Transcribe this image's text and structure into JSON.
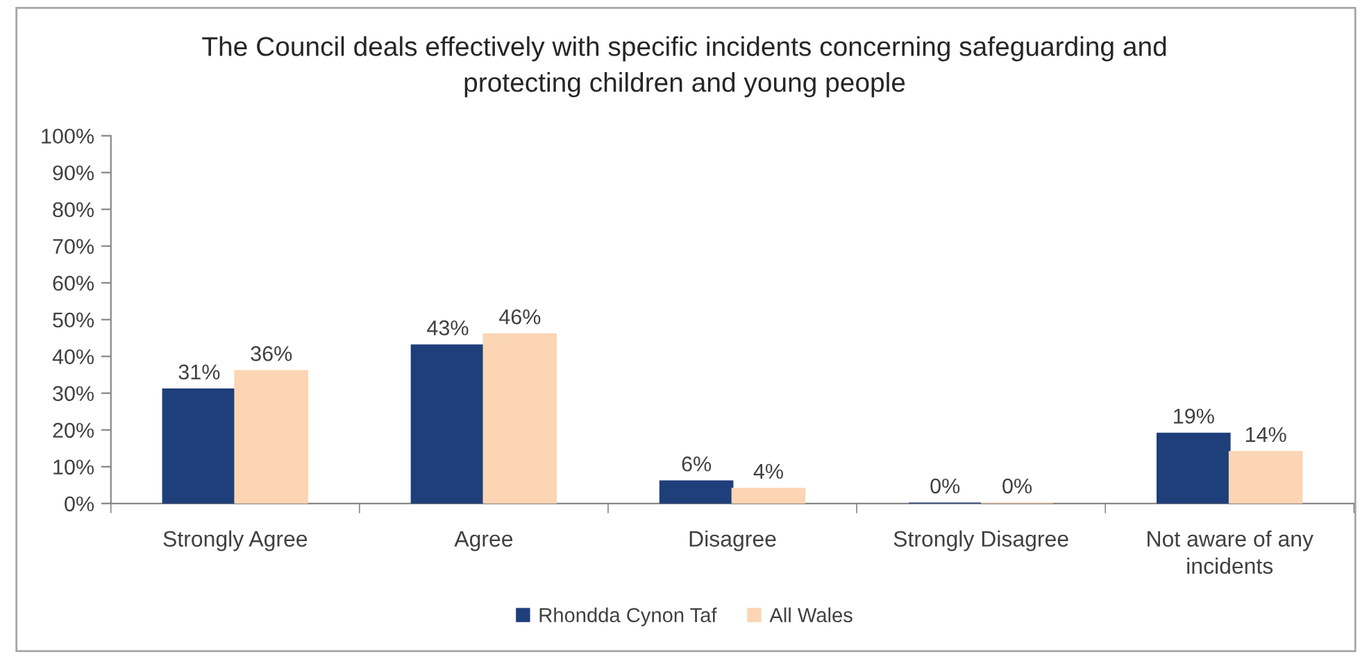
{
  "chart_data": {
    "type": "bar",
    "title": "The Council deals effectively with specific incidents concerning safeguarding and\nprotecting children and young people",
    "categories": [
      "Strongly Agree",
      "Agree",
      "Disagree",
      "Strongly Disagree",
      "Not aware of any\nincidents"
    ],
    "series": [
      {
        "name": "Rhondda Cynon Taf",
        "color": "#1f3f7a",
        "values": [
          31,
          43,
          6,
          0,
          19
        ],
        "value_labels": [
          "31%",
          "43%",
          "6%",
          "0%",
          "19%"
        ]
      },
      {
        "name": "All Wales",
        "color": "#fcd5b4",
        "values": [
          36,
          46,
          4,
          0,
          14
        ],
        "value_labels": [
          "36%",
          "46%",
          "4%",
          "0%",
          "14%"
        ]
      }
    ],
    "ylim": [
      0,
      100
    ],
    "yticks": [
      {
        "value": 0,
        "label": "0%"
      },
      {
        "value": 10,
        "label": "10%"
      },
      {
        "value": 20,
        "label": "20%"
      },
      {
        "value": 30,
        "label": "30%"
      },
      {
        "value": 40,
        "label": "40%"
      },
      {
        "value": 50,
        "label": "50%"
      },
      {
        "value": 60,
        "label": "60%"
      },
      {
        "value": 70,
        "label": "70%"
      },
      {
        "value": 80,
        "label": "80%"
      },
      {
        "value": 90,
        "label": "90%"
      },
      {
        "value": 100,
        "label": "100%"
      }
    ],
    "grid": false,
    "legend": "bottom"
  }
}
